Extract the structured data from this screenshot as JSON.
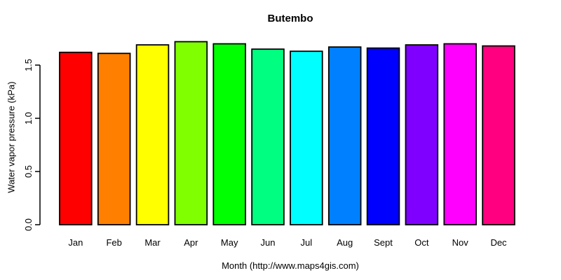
{
  "chart_data": {
    "type": "bar",
    "title": "Butembo",
    "xlabel": "Month (http://www.maps4gis.com)",
    "ylabel": "Water vapor pressure (kPa)",
    "categories": [
      "Jan",
      "Feb",
      "Mar",
      "Apr",
      "May",
      "Jun",
      "Jul",
      "Aug",
      "Sept",
      "Oct",
      "Nov",
      "Dec"
    ],
    "values": [
      1.62,
      1.61,
      1.69,
      1.72,
      1.7,
      1.65,
      1.63,
      1.67,
      1.66,
      1.69,
      1.7,
      1.68
    ],
    "colors": [
      "#FF0000",
      "#FF8000",
      "#FFFF00",
      "#80FF00",
      "#00FF00",
      "#00FF80",
      "#00FFFF",
      "#0080FF",
      "#0000FF",
      "#8000FF",
      "#FF00FF",
      "#FF0080"
    ],
    "bar_border_color": "#000000",
    "axis_color": "#000000",
    "yticks": [
      "0.0",
      "0.5",
      "1.0",
      "1.5"
    ],
    "ylim": [
      0,
      1.75
    ],
    "grid": false,
    "legend": "none"
  }
}
